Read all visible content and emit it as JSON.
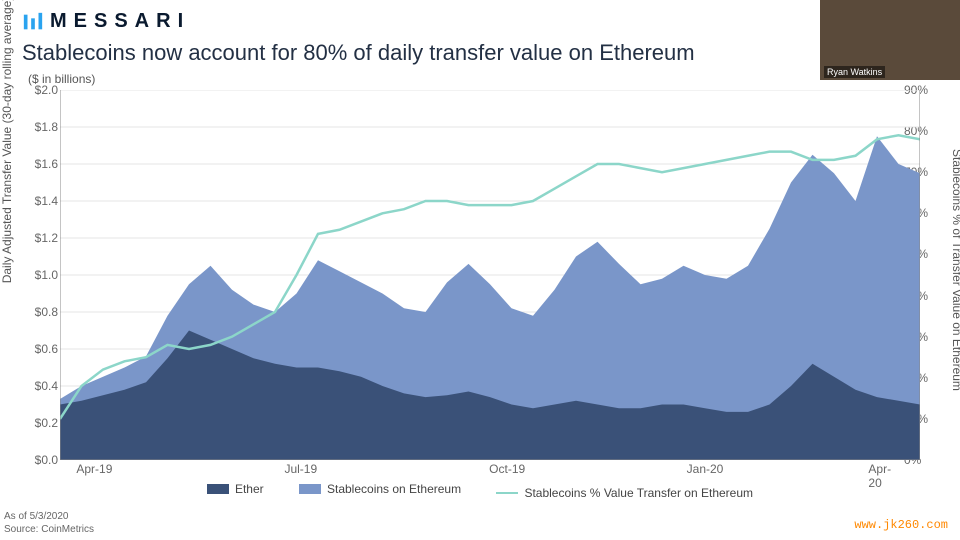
{
  "brand": {
    "name": "MESSARI"
  },
  "title": "Stablecoins now account for 80% of daily transfer value on Ethereum",
  "subtitle": "($ in billions)",
  "y1_axis": {
    "title": "Daily Adjusted Transfer Value (30-day rolling average)",
    "min": 0,
    "max": 2.0,
    "step": 0.2,
    "ticks": [
      "$0.0",
      "$0.2",
      "$0.4",
      "$0.6",
      "$0.8",
      "$1.0",
      "$1.2",
      "$1.4",
      "$1.6",
      "$1.8",
      "$2.0"
    ]
  },
  "y2_axis": {
    "title": "Stablecoins % of Transfer Value on Ethereum",
    "min": 0,
    "max": 90,
    "step": 10,
    "ticks": [
      "0%",
      "10%",
      "20%",
      "30%",
      "40%",
      "50%",
      "60%",
      "70%",
      "80%",
      "90%"
    ]
  },
  "x_axis": {
    "labels": [
      "Apr-19",
      "Jul-19",
      "Oct-19",
      "Jan-20",
      "Apr-20"
    ],
    "positions_pct": [
      4,
      28,
      52,
      75,
      96
    ]
  },
  "colors": {
    "ether": "#3a5178",
    "stablecoins": "#7a96c9",
    "pct_line": "#8cd6c9",
    "grid": "#e5e5e5",
    "axis": "#888888",
    "background": "#ffffff"
  },
  "legend": {
    "ether": "Ether",
    "stablecoins": "Stablecoins on Ethereum",
    "pct": "Stablecoins % Value Transfer on Ethereum"
  },
  "footer": {
    "asof": "As of 5/3/2020",
    "source": "Source: CoinMetrics"
  },
  "watermark": "www.jk260.com",
  "webcam": {
    "name": "Ryan Watkins"
  },
  "series": {
    "n_points": 41,
    "ether": [
      0.3,
      0.32,
      0.35,
      0.38,
      0.42,
      0.55,
      0.7,
      0.65,
      0.6,
      0.55,
      0.52,
      0.5,
      0.5,
      0.48,
      0.45,
      0.4,
      0.36,
      0.34,
      0.35,
      0.37,
      0.34,
      0.3,
      0.28,
      0.3,
      0.32,
      0.3,
      0.28,
      0.28,
      0.3,
      0.3,
      0.28,
      0.26,
      0.26,
      0.3,
      0.4,
      0.52,
      0.45,
      0.38,
      0.34,
      0.32,
      0.3
    ],
    "total": [
      0.33,
      0.4,
      0.45,
      0.5,
      0.56,
      0.78,
      0.95,
      1.05,
      0.92,
      0.84,
      0.8,
      0.9,
      1.08,
      1.02,
      0.96,
      0.9,
      0.82,
      0.8,
      0.96,
      1.06,
      0.95,
      0.82,
      0.78,
      0.92,
      1.1,
      1.18,
      1.06,
      0.95,
      0.98,
      1.05,
      1.0,
      0.98,
      1.05,
      1.25,
      1.5,
      1.65,
      1.55,
      1.4,
      1.75,
      1.6,
      1.55
    ],
    "pct": [
      10,
      18,
      22,
      24,
      25,
      28,
      27,
      28,
      30,
      33,
      36,
      45,
      55,
      56,
      58,
      60,
      61,
      63,
      63,
      62,
      62,
      62,
      63,
      66,
      69,
      72,
      72,
      71,
      70,
      71,
      72,
      73,
      74,
      75,
      75,
      73,
      73,
      74,
      78,
      79,
      78
    ]
  }
}
